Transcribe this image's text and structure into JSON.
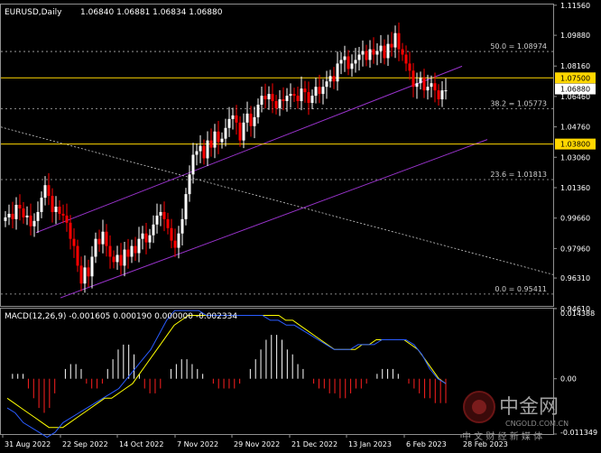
{
  "chart_data": {
    "type": "candlestick",
    "title": "EURUSD,Daily",
    "ohlc_readout": "1.06840 1.06881 1.06834 1.06880",
    "price_axis": {
      "ylim": [
        0.9475,
        1.116
      ],
      "tick_labels": [
        "1.11560",
        "1.09880",
        "1.08160",
        "1.06460",
        "1.04760",
        "1.03060",
        "1.01360",
        "0.99660",
        "0.97960",
        "0.96310",
        "0.94610"
      ]
    },
    "time_axis": {
      "labels": [
        "31 Aug 2022",
        "22 Sep 2022",
        "14 Oct 2022",
        "7 Nov 2022",
        "29 Nov 2022",
        "21 Dec 2022",
        "13 Jan 2023",
        "6 Feb 2023",
        "28 Feb 2023"
      ]
    },
    "horizontal_lines": [
      {
        "label": "1.07500",
        "value": 1.075,
        "color": "#ffd700"
      },
      {
        "label": "1.03800",
        "value": 1.038,
        "color": "#ffd700"
      }
    ],
    "current_price": {
      "label": "1.06880",
      "value": 1.0688
    },
    "fibonacci": [
      {
        "label": "50.0 = 1.08974",
        "value": 1.08974
      },
      {
        "label": "38.2 = 1.05773",
        "value": 1.05773
      },
      {
        "label": "23.6 = 1.01813",
        "value": 1.01813
      },
      {
        "label": "0.0 = 0.95411",
        "value": 0.95411
      }
    ],
    "closes": [
      0.997,
      0.999,
      0.996,
      1.004,
      1.002,
      0.997,
      0.998,
      0.992,
      0.995,
      1.0,
      1.008,
      1.015,
      1.009,
      1.0,
      1.003,
      0.999,
      0.998,
      0.994,
      0.985,
      0.981,
      0.97,
      0.96,
      0.969,
      0.964,
      0.975,
      0.985,
      0.982,
      0.989,
      0.981,
      0.975,
      0.972,
      0.976,
      0.97,
      0.979,
      0.975,
      0.981,
      0.977,
      0.985,
      0.988,
      0.983,
      0.987,
      0.993,
      0.998,
      1.0,
      0.996,
      0.991,
      0.984,
      0.98,
      0.988,
      0.996,
      1.01,
      1.021,
      1.032,
      1.034,
      1.037,
      1.03,
      1.04,
      1.036,
      1.045,
      1.039,
      1.041,
      1.047,
      1.052,
      1.054,
      1.05,
      1.04,
      1.05,
      1.055,
      1.048,
      1.053,
      1.06,
      1.065,
      1.063,
      1.066,
      1.062,
      1.058,
      1.063,
      1.062,
      1.065,
      1.066,
      1.065,
      1.062,
      1.069,
      1.067,
      1.061,
      1.065,
      1.07,
      1.066,
      1.07,
      1.073,
      1.076,
      1.073,
      1.083,
      1.085,
      1.087,
      1.08,
      1.083,
      1.085,
      1.088,
      1.09,
      1.085,
      1.091,
      1.088,
      1.09,
      1.093,
      1.086,
      1.094,
      1.092,
      1.1,
      1.091,
      1.088,
      1.083,
      1.079,
      1.07,
      1.072,
      1.075,
      1.068,
      1.07,
      1.072,
      1.068,
      1.063,
      1.068,
      1.068
    ],
    "macd": {
      "label": "MACD(12,26,9) -0.001605 0.000190 0.000000 -0.002334",
      "axis_labels": [
        "0.014388",
        "0.00",
        "-0.011349"
      ],
      "histogram": [
        0.0,
        0.001,
        0.001,
        0.001,
        -0.002,
        -0.004,
        -0.006,
        -0.007,
        -0.006,
        -0.003,
        0.0,
        0.002,
        0.003,
        0.003,
        0.002,
        -0.001,
        -0.002,
        -0.002,
        -0.001,
        0.002,
        0.004,
        0.006,
        0.007,
        0.007,
        0.005,
        0.001,
        -0.002,
        -0.003,
        -0.003,
        -0.002,
        0.0,
        0.002,
        0.003,
        0.004,
        0.004,
        0.003,
        0.002,
        0.001,
        0.0,
        -0.001,
        -0.002,
        -0.002,
        -0.002,
        -0.002,
        -0.001,
        0.0,
        0.002,
        0.004,
        0.006,
        0.008,
        0.009,
        0.009,
        0.008,
        0.006,
        0.005,
        0.003,
        0.002,
        0.0,
        -0.001,
        -0.002,
        -0.002,
        -0.003,
        -0.003,
        -0.004,
        -0.004,
        -0.003,
        -0.002,
        -0.002,
        -0.001,
        0.0,
        0.001,
        0.002,
        0.002,
        0.002,
        0.001,
        0.0,
        -0.001,
        -0.002,
        -0.003,
        -0.004,
        -0.004,
        -0.005,
        -0.005,
        -0.005
      ],
      "signal": [
        -0.004,
        -0.005,
        -0.006,
        -0.007,
        -0.008,
        -0.009,
        -0.01,
        -0.01,
        -0.01,
        -0.009,
        -0.008,
        -0.007,
        -0.006,
        -0.005,
        -0.004,
        -0.004,
        -0.003,
        -0.002,
        -0.001,
        0.001,
        0.003,
        0.005,
        0.007,
        0.009,
        0.011,
        0.012,
        0.013,
        0.013,
        0.013,
        0.013,
        0.013,
        0.013,
        0.013,
        0.013,
        0.013,
        0.013,
        0.013,
        0.013,
        0.013,
        0.013,
        0.012,
        0.012,
        0.011,
        0.01,
        0.009,
        0.008,
        0.007,
        0.006,
        0.006,
        0.006,
        0.006,
        0.007,
        0.007,
        0.008,
        0.008,
        0.008,
        0.008,
        0.008,
        0.007,
        0.006,
        0.004,
        0.002,
        0.0,
        -0.001
      ],
      "macd_line": [
        -0.006,
        -0.007,
        -0.009,
        -0.01,
        -0.011,
        -0.012,
        -0.011,
        -0.009,
        -0.008,
        -0.007,
        -0.006,
        -0.005,
        -0.004,
        -0.003,
        -0.002,
        0.0,
        0.002,
        0.004,
        0.006,
        0.009,
        0.012,
        0.014,
        0.014,
        0.014,
        0.014,
        0.013,
        0.013,
        0.013,
        0.013,
        0.013,
        0.013,
        0.013,
        0.013,
        0.012,
        0.012,
        0.011,
        0.011,
        0.01,
        0.009,
        0.008,
        0.007,
        0.006,
        0.006,
        0.006,
        0.007,
        0.007,
        0.007,
        0.008,
        0.008,
        0.008,
        0.008,
        0.007,
        0.005,
        0.002,
        0.0,
        -0.001
      ]
    },
    "colors": {
      "up": "#ffffff",
      "down": "#ff0000",
      "channel": "#9933cc",
      "fib": "#b0b0b0",
      "trend_dotted": "#c8c8c8",
      "signal": "#ffff00",
      "macd_line": "#2a5cff",
      "hist_up": "#ffffff",
      "hist_down": "#ff2020"
    }
  },
  "watermark": {
    "brand": "中金网",
    "site": "CNGOLD.COM.CN",
    "tagline": "中 文 财 经 新 媒 体"
  }
}
